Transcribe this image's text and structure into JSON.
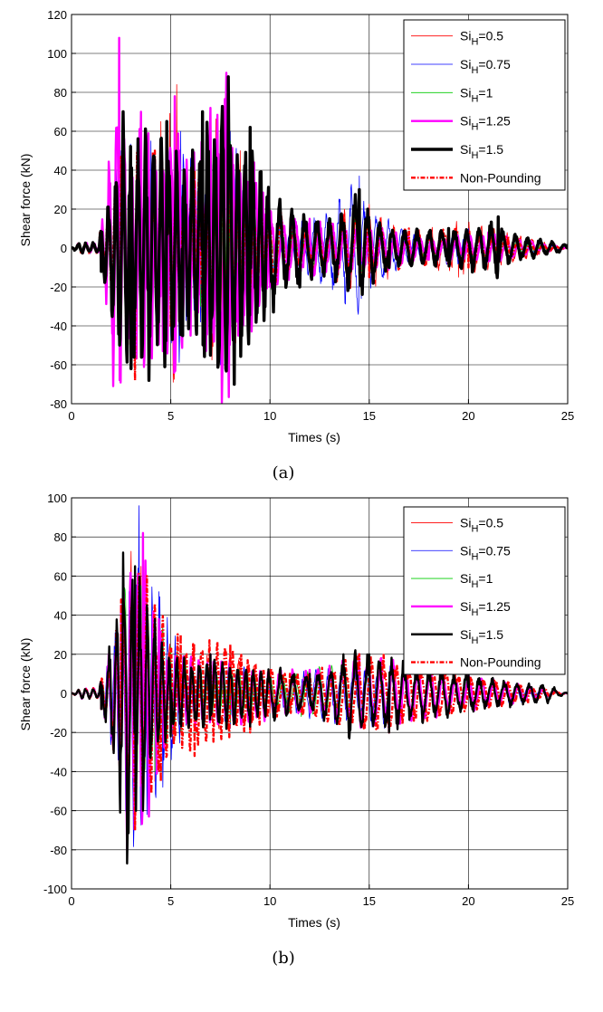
{
  "chart_data": [
    {
      "type": "line",
      "caption": "(a)",
      "xlabel": "Times (s)",
      "ylabel": "Shear force (kN)",
      "xlim": [
        0,
        25
      ],
      "ylim": [
        -80,
        120
      ],
      "xticks": [
        0,
        5,
        10,
        15,
        20,
        25
      ],
      "yticks": [
        -80,
        -60,
        -40,
        -20,
        0,
        20,
        40,
        60,
        80,
        100,
        120
      ],
      "grid": true,
      "legend_position": "top-right",
      "series": [
        {
          "name_main": "Si",
          "name_sub": "H",
          "name_rest": "=0.5",
          "color": "#ff0000",
          "style": "solid",
          "weight": "thin",
          "peaks": [
            [
              0,
              0
            ],
            [
              1.5,
              -10
            ],
            [
              2.5,
              40
            ],
            [
              3.2,
              -60
            ],
            [
              4.5,
              65
            ],
            [
              5.3,
              84
            ],
            [
              6,
              -40
            ],
            [
              7.6,
              -76
            ],
            [
              8.5,
              50
            ],
            [
              10,
              -10
            ],
            [
              12,
              12
            ],
            [
              14.5,
              28
            ],
            [
              17,
              -8
            ],
            [
              19.5,
              -15
            ],
            [
              21.5,
              10
            ],
            [
              25,
              0
            ]
          ]
        },
        {
          "name_main": "Si",
          "name_sub": "H",
          "name_rest": "=0.75",
          "color": "#0000ff",
          "style": "solid",
          "weight": "thin",
          "peaks": [
            [
              0,
              0
            ],
            [
              1.5,
              -10
            ],
            [
              2.5,
              50
            ],
            [
              3,
              -55
            ],
            [
              4,
              55
            ],
            [
              5.5,
              60
            ],
            [
              6.5,
              -38
            ],
            [
              7.5,
              -60
            ],
            [
              8,
              60
            ],
            [
              10,
              -15
            ],
            [
              12,
              15
            ],
            [
              14.5,
              37
            ],
            [
              14.6,
              -26
            ],
            [
              17,
              -8
            ],
            [
              20,
              10
            ],
            [
              25,
              0
            ]
          ]
        },
        {
          "name_main": "Si",
          "name_sub": "H",
          "name_rest": "=1",
          "color": "#00cc00",
          "style": "solid",
          "weight": "thin",
          "peaks": [
            [
              0,
              0
            ],
            [
              1.5,
              -8
            ],
            [
              2.5,
              40
            ],
            [
              3.5,
              -40
            ],
            [
              5,
              50
            ],
            [
              6.5,
              -30
            ],
            [
              8,
              55
            ],
            [
              10,
              -12
            ],
            [
              12,
              12
            ],
            [
              14.5,
              20
            ],
            [
              17,
              -6
            ],
            [
              20,
              8
            ],
            [
              25,
              0
            ]
          ]
        },
        {
          "name_main": "Si",
          "name_sub": "H",
          "name_rest": "=1.25",
          "color": "#ff00ff",
          "style": "solid",
          "weight": "thick",
          "peaks": [
            [
              0,
              0
            ],
            [
              1.5,
              -12
            ],
            [
              2.4,
              108
            ],
            [
              2.8,
              -57
            ],
            [
              3.5,
              70
            ],
            [
              4.6,
              -53
            ],
            [
              5.2,
              78
            ],
            [
              6,
              -45
            ],
            [
              7,
              72
            ],
            [
              7.8,
              90
            ],
            [
              8.4,
              -45
            ],
            [
              9.2,
              44
            ],
            [
              10,
              -20
            ],
            [
              12,
              15
            ],
            [
              14.5,
              15
            ],
            [
              18,
              -6
            ],
            [
              21,
              8
            ],
            [
              25,
              0
            ]
          ]
        },
        {
          "name_main": "Si",
          "name_sub": "H",
          "name_rest": "=1.5",
          "color": "#000000",
          "style": "solid",
          "weight": "thicker",
          "peaks": [
            [
              0,
              0
            ],
            [
              1.5,
              -12
            ],
            [
              2.6,
              70
            ],
            [
              3,
              -62
            ],
            [
              3.9,
              -68
            ],
            [
              4.8,
              65
            ],
            [
              5.6,
              -45
            ],
            [
              6.6,
              70
            ],
            [
              7.9,
              88
            ],
            [
              8.2,
              -70
            ],
            [
              9,
              62
            ],
            [
              10.5,
              25
            ],
            [
              11.5,
              -20
            ],
            [
              13,
              15
            ],
            [
              14.5,
              30
            ],
            [
              16,
              -10
            ],
            [
              19,
              10
            ],
            [
              21.5,
              16
            ],
            [
              22,
              -8
            ],
            [
              25,
              2
            ]
          ]
        },
        {
          "name": "Non-Pounding",
          "color": "#ff0000",
          "style": "dashdot",
          "weight": "thick",
          "peaks": [
            [
              0,
              0
            ],
            [
              1.5,
              -10
            ],
            [
              2.5,
              47
            ],
            [
              3.2,
              -68
            ],
            [
              4.2,
              50
            ],
            [
              5,
              -40
            ],
            [
              6.2,
              40
            ],
            [
              7,
              -35
            ],
            [
              8,
              30
            ],
            [
              9,
              -25
            ],
            [
              10.5,
              20
            ],
            [
              12,
              -10
            ],
            [
              14.5,
              20
            ],
            [
              15,
              -15
            ],
            [
              17,
              10
            ],
            [
              20,
              -10
            ],
            [
              22,
              6
            ],
            [
              25,
              0
            ]
          ]
        }
      ]
    },
    {
      "type": "line",
      "caption": "(b)",
      "xlabel": "Times (s)",
      "ylabel": "Shear force (kN)",
      "xlim": [
        0,
        25
      ],
      "ylim": [
        -100,
        100
      ],
      "xticks": [
        0,
        5,
        10,
        15,
        20,
        25
      ],
      "yticks": [
        -100,
        -80,
        -60,
        -40,
        -20,
        0,
        20,
        40,
        60,
        80,
        100
      ],
      "grid": true,
      "legend_position": "top-right",
      "series": [
        {
          "name_main": "Si",
          "name_sub": "H",
          "name_rest": "=0.5",
          "color": "#ff0000",
          "style": "solid",
          "weight": "thin",
          "peaks": [
            [
              0,
              0
            ],
            [
              1.5,
              -8
            ],
            [
              2.5,
              45
            ],
            [
              2.8,
              -80
            ],
            [
              3.5,
              65
            ],
            [
              4.2,
              -45
            ],
            [
              5.5,
              -20
            ],
            [
              8,
              20
            ],
            [
              10,
              -10
            ],
            [
              12,
              10
            ],
            [
              14.5,
              18
            ],
            [
              16,
              -18
            ],
            [
              20,
              10
            ],
            [
              25,
              0
            ]
          ]
        },
        {
          "name_main": "Si",
          "name_sub": "H",
          "name_rest": "=0.75",
          "color": "#0000ff",
          "style": "solid",
          "weight": "thin",
          "peaks": [
            [
              0,
              0
            ],
            [
              1.5,
              -8
            ],
            [
              2.6,
              55
            ],
            [
              2.8,
              -85
            ],
            [
              3.4,
              96
            ],
            [
              3.8,
              -62
            ],
            [
              4.4,
              52
            ],
            [
              4.6,
              -48
            ],
            [
              6,
              15
            ],
            [
              8,
              -18
            ],
            [
              10,
              10
            ],
            [
              14.5,
              18
            ],
            [
              16,
              -18
            ],
            [
              20,
              10
            ],
            [
              25,
              0
            ]
          ]
        },
        {
          "name_main": "Si",
          "name_sub": "H",
          "name_rest": "=1",
          "color": "#00cc00",
          "style": "solid",
          "weight": "thin",
          "peaks": [
            [
              0,
              0
            ],
            [
              1.5,
              -8
            ],
            [
              2.5,
              40
            ],
            [
              2.8,
              -70
            ],
            [
              3.5,
              55
            ],
            [
              4.2,
              -40
            ],
            [
              6,
              15
            ],
            [
              8,
              -15
            ],
            [
              10,
              10
            ],
            [
              14.5,
              18
            ],
            [
              16,
              -18
            ],
            [
              20,
              10
            ],
            [
              25,
              0
            ]
          ]
        },
        {
          "name_main": "Si",
          "name_sub": "H",
          "name_rest": "=1.25",
          "color": "#ff00ff",
          "style": "solid",
          "weight": "thick",
          "peaks": [
            [
              0,
              0
            ],
            [
              1.5,
              -8
            ],
            [
              2.5,
              45
            ],
            [
              2.8,
              -80
            ],
            [
              3.6,
              82
            ],
            [
              3.9,
              -63
            ],
            [
              4.4,
              38
            ],
            [
              5,
              -20
            ],
            [
              7,
              20
            ],
            [
              9,
              -15
            ],
            [
              12,
              12
            ],
            [
              14.5,
              20
            ],
            [
              16,
              -20
            ],
            [
              20,
              10
            ],
            [
              25,
              0
            ]
          ]
        },
        {
          "name_main": "Si",
          "name_sub": "H",
          "name_rest": "=1.5",
          "color": "#000000",
          "style": "solid",
          "weight": "thick",
          "peaks": [
            [
              0,
              0
            ],
            [
              1.5,
              -8
            ],
            [
              2.6,
              72
            ],
            [
              2.8,
              -87
            ],
            [
              3.2,
              65
            ],
            [
              3.6,
              -60
            ],
            [
              4.2,
              38
            ],
            [
              5,
              -22
            ],
            [
              7,
              20
            ],
            [
              9,
              -17
            ],
            [
              12,
              10
            ],
            [
              14,
              -23
            ],
            [
              15,
              20
            ],
            [
              16,
              -20
            ],
            [
              20,
              10
            ],
            [
              24,
              -5
            ],
            [
              25,
              0
            ]
          ]
        },
        {
          "name": "Non-Pounding",
          "color": "#ff0000",
          "style": "dashdot",
          "weight": "thick",
          "peaks": [
            [
              0,
              0
            ],
            [
              1.5,
              -8
            ],
            [
              2.5,
              48
            ],
            [
              3.2,
              -70
            ],
            [
              3.8,
              60
            ],
            [
              4.5,
              -45
            ],
            [
              5.5,
              30
            ],
            [
              6.2,
              -32
            ],
            [
              8,
              25
            ],
            [
              9,
              -20
            ],
            [
              11,
              10
            ],
            [
              14.5,
              20
            ],
            [
              16,
              -20
            ],
            [
              20,
              10
            ],
            [
              23,
              -5
            ],
            [
              25,
              0
            ]
          ]
        }
      ]
    }
  ]
}
